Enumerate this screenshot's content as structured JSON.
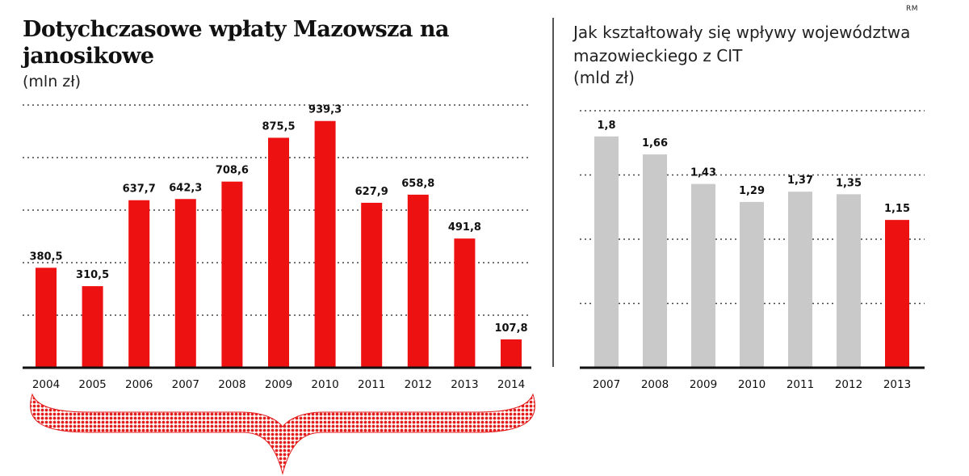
{
  "credit": "RM",
  "left_panel": {
    "title": "Dotychczasowe wpłaty Mazowsza na janosikowe",
    "unit": "(mln zł)"
  },
  "right_panel": {
    "title": "Jak kształtowały się wpływy województwa mazowieckiego z CIT",
    "unit": "(mld zł)"
  },
  "colors": {
    "red": "#ee1111",
    "gray": "#c9c9c9",
    "axis": "#111111",
    "grid": "#444444"
  },
  "chart_data": [
    {
      "type": "bar",
      "title": "Dotychczasowe wpłaty Mazowsza na janosikowe",
      "ylabel": "(mln zł)",
      "categories": [
        "2004",
        "2005",
        "2006",
        "2007",
        "2008",
        "2009",
        "2010",
        "2011",
        "2012",
        "2013",
        "2014"
      ],
      "values": [
        380.5,
        310.5,
        637.7,
        642.3,
        708.6,
        875.5,
        939.3,
        627.9,
        658.8,
        491.8,
        107.8
      ],
      "value_labels": [
        "380,5",
        "310,5",
        "637,7",
        "642,3",
        "708,6",
        "875,5",
        "939,3",
        "627,9",
        "658,8",
        "491,8",
        "107,8"
      ],
      "ylim": [
        0,
        1000
      ],
      "gridlines": [
        200,
        400,
        600,
        800,
        1000
      ],
      "color": "#ee1111",
      "annotation": "curly brace under all years"
    },
    {
      "type": "bar",
      "title": "Jak kształtowały się wpływy województwa mazowieckiego z CIT",
      "ylabel": "(mld zł)",
      "categories": [
        "2007",
        "2008",
        "2009",
        "2010",
        "2011",
        "2012",
        "2013"
      ],
      "values": [
        1.8,
        1.66,
        1.43,
        1.29,
        1.37,
        1.35,
        1.15
      ],
      "value_labels": [
        "1,8",
        "1,66",
        "1,43",
        "1,29",
        "1,37",
        "1,35",
        "1,15"
      ],
      "ylim": [
        0,
        2.0
      ],
      "gridlines": [
        0.5,
        1.0,
        1.5,
        2.0
      ],
      "bar_colors": [
        "#c9c9c9",
        "#c9c9c9",
        "#c9c9c9",
        "#c9c9c9",
        "#c9c9c9",
        "#c9c9c9",
        "#ee1111"
      ]
    }
  ]
}
